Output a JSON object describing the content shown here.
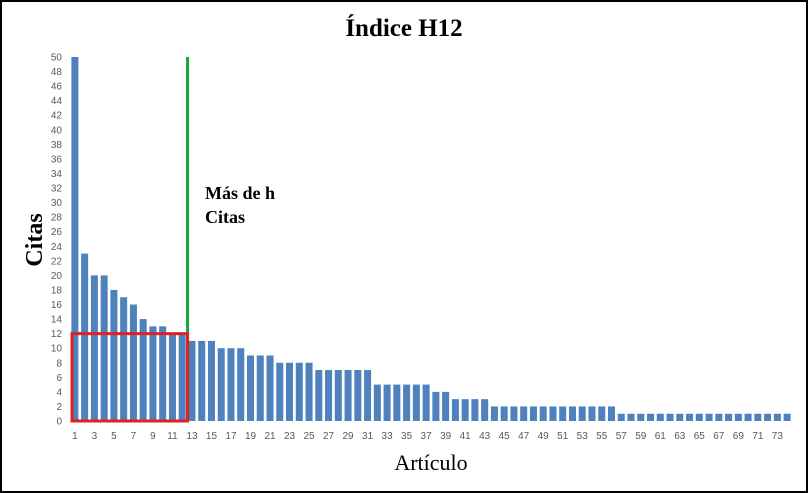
{
  "chart_data": {
    "type": "bar",
    "title": "Índice H12",
    "xlabel": "Artículo",
    "ylabel": "Citas",
    "ylim": [
      0,
      50
    ],
    "y_ticks": [
      0,
      2,
      4,
      6,
      8,
      10,
      12,
      14,
      16,
      18,
      20,
      22,
      24,
      26,
      28,
      30,
      32,
      34,
      36,
      38,
      40,
      42,
      44,
      46,
      48,
      50
    ],
    "categories": [
      1,
      2,
      3,
      4,
      5,
      6,
      7,
      8,
      9,
      10,
      11,
      12,
      13,
      14,
      15,
      16,
      17,
      18,
      19,
      20,
      21,
      22,
      23,
      24,
      25,
      26,
      27,
      28,
      29,
      30,
      31,
      32,
      33,
      34,
      35,
      36,
      37,
      38,
      39,
      40,
      41,
      42,
      43,
      44,
      45,
      46,
      47,
      48,
      49,
      50,
      51,
      52,
      53,
      54,
      55,
      56,
      57,
      58,
      59,
      60,
      61,
      62,
      63,
      64,
      65,
      66,
      67,
      68,
      69,
      70,
      71,
      72,
      73,
      74
    ],
    "x_tick_labels": [
      1,
      3,
      5,
      7,
      9,
      11,
      13,
      15,
      17,
      19,
      21,
      23,
      25,
      27,
      29,
      31,
      33,
      35,
      37,
      39,
      41,
      43,
      45,
      47,
      49,
      51,
      53,
      55,
      57,
      59,
      61,
      63,
      65,
      67,
      69,
      71,
      73
    ],
    "values": [
      50,
      23,
      20,
      20,
      18,
      17,
      16,
      14,
      13,
      13,
      12,
      12,
      11,
      11,
      11,
      10,
      10,
      10,
      9,
      9,
      9,
      8,
      8,
      8,
      8,
      7,
      7,
      7,
      7,
      7,
      7,
      5,
      5,
      5,
      5,
      5,
      5,
      4,
      4,
      3,
      3,
      3,
      3,
      2,
      2,
      2,
      2,
      2,
      2,
      2,
      2,
      2,
      2,
      2,
      2,
      2,
      1,
      1,
      1,
      1,
      1,
      1,
      1,
      1,
      1,
      1,
      1,
      1,
      1,
      1,
      1,
      1,
      1,
      1
    ],
    "bar_color": "#4f81bd",
    "h_index": 12,
    "h_line_after_article": 13,
    "h_line_color": "#1aa33a",
    "h_box_color": "#e02020",
    "annotation": [
      "Más de h",
      "Citas"
    ],
    "legend": "none",
    "grid": false
  }
}
